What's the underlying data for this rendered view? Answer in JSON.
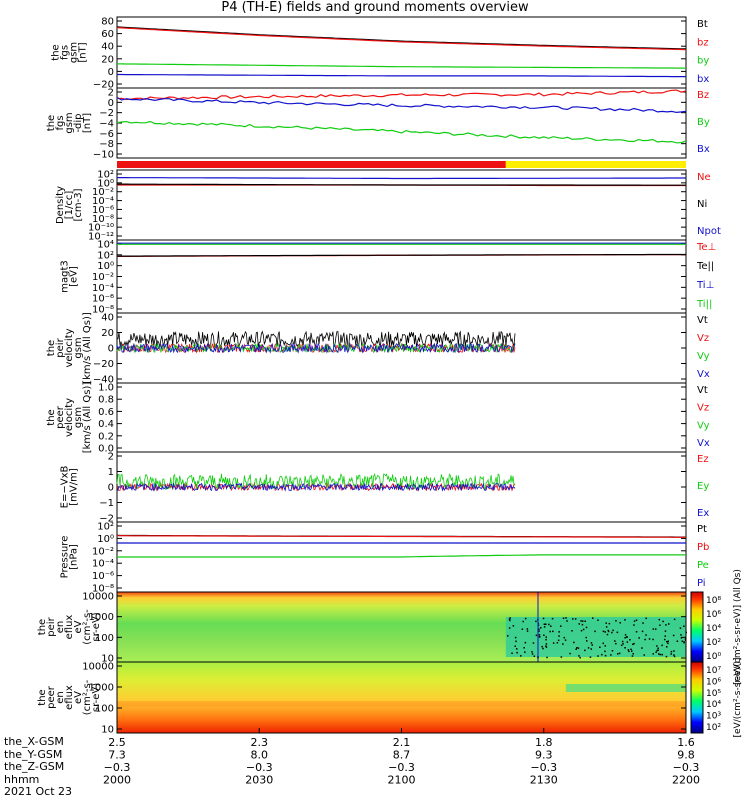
{
  "title": "P4 (TH-E) fields and ground moments overview",
  "panels": [
    {
      "ylabel": [
        "the",
        "fgs",
        "gsm",
        "[nT]"
      ],
      "yticks": [
        "80",
        "60",
        "40",
        "20",
        "0",
        "−20"
      ],
      "legend": [
        "Bt",
        "bz",
        "by",
        "bx"
      ],
      "legend_colors": [
        "#000000",
        "#ee1111",
        "#11cc11",
        "#1111cc"
      ]
    },
    {
      "ylabel": [
        "the",
        "fgs",
        "gsm",
        "-dip",
        "[nT]"
      ],
      "yticks": [
        "2",
        "0",
        "−2",
        "−4",
        "−6",
        "−8",
        "−10"
      ],
      "legend": [
        "Bz",
        "By",
        "Bx"
      ],
      "legend_colors": [
        "#ee1111",
        "#11cc11",
        "#1111cc"
      ]
    },
    {
      "ylabel": [
        "Density",
        "[1/cc]",
        "[cm-3]"
      ],
      "yticks": [
        "10²",
        "10⁰",
        "10⁻²",
        "10⁻⁴",
        "10⁻⁶",
        "10⁻⁸",
        "10⁻¹⁰",
        "10⁻¹²"
      ],
      "legend": [
        "Ne",
        "Ni",
        "Npot"
      ],
      "legend_colors": [
        "#ee1111",
        "#000000",
        "#1111cc"
      ]
    },
    {
      "ylabel": [
        "magt3",
        "[eV]"
      ],
      "yticks": [
        "10⁴",
        "10²",
        "10⁰",
        "10⁻²",
        "10⁻⁴",
        "10⁻⁶",
        "10⁻⁸"
      ],
      "legend": [
        "Te⊥",
        "Te||",
        "Ti⊥",
        "Ti||"
      ],
      "legend_colors": [
        "#ee1111",
        "#000000",
        "#1111cc",
        "#11cc11"
      ]
    },
    {
      "ylabel": [
        "the",
        "peir",
        "velocity",
        "gsm",
        "[km/s (All Qs)]"
      ],
      "yticks": [
        "40",
        "20",
        "0",
        "−20",
        "−40"
      ],
      "legend": [
        "Vt",
        "Vz",
        "Vy",
        "Vx"
      ],
      "legend_colors": [
        "#000000",
        "#ee1111",
        "#11cc11",
        "#1111cc"
      ]
    },
    {
      "ylabel": [
        "the",
        "peer",
        "velocity",
        "gsm",
        "[km/s (All Qs)]"
      ],
      "yticks": [
        "1.0",
        "0.8",
        "0.6",
        "0.4",
        "0.2",
        "0.0"
      ],
      "legend": [
        "Vt",
        "Vz",
        "Vy",
        "Vx"
      ],
      "legend_colors": [
        "#000000",
        "#ee1111",
        "#11cc11",
        "#1111cc"
      ]
    },
    {
      "ylabel": [
        "E=−VxB",
        "[mV/m]"
      ],
      "yticks": [
        "2",
        "1",
        "0",
        "−1",
        "−2"
      ],
      "legend": [
        "Ez",
        "Ey",
        "Ex"
      ],
      "legend_colors": [
        "#ee1111",
        "#11cc11",
        "#1111cc"
      ]
    },
    {
      "ylabel": [
        "Pressure",
        "[nPa]"
      ],
      "yticks": [
        "10²",
        "10⁰",
        "10⁻²",
        "10⁻⁴",
        "10⁻⁶",
        "10⁻⁸"
      ],
      "legend": [
        "Pt",
        "Pb",
        "Pe",
        "Pi"
      ],
      "legend_colors": [
        "#000000",
        "#ee1111",
        "#11cc11",
        "#1111cc"
      ]
    },
    {
      "ylabel": [
        "the",
        "peir",
        "en",
        "eflux",
        "eV",
        "(cm²-s-",
        "sr-eV)"
      ],
      "yticks": [
        "10000",
        "1000",
        "100",
        "10"
      ],
      "legend": [],
      "legend_colors": []
    },
    {
      "ylabel": [
        "the",
        "peer",
        "en",
        "eflux",
        "eV",
        "(cm²-s-",
        "sr-eV)"
      ],
      "yticks": [
        "10000",
        "1000",
        "100",
        "10"
      ],
      "legend": [],
      "legend_colors": []
    }
  ],
  "colorbars": [
    {
      "ticks": [
        "10⁸",
        "10⁶",
        "10⁴",
        "10²",
        "10⁰"
      ],
      "label": "[eV/(cm²-s-sr-eV)] (All Qs)"
    },
    {
      "ticks": [
        "10⁷",
        "10⁶",
        "10⁵",
        "10⁴",
        "10³",
        "10²"
      ],
      "label": "[eV/(cm²-s-sr-eV)]"
    }
  ],
  "xaxis": {
    "row_labels": [
      "the_X-GSM",
      "the_Y-GSM",
      "the_Z-GSM",
      "hhmm",
      "2021 Oct 23"
    ],
    "ticks": [
      {
        "x": "2.5",
        "y": "7.3",
        "z": "−0.3",
        "hhmm": "2000"
      },
      {
        "x": "2.3",
        "y": "8.0",
        "z": "−0.3",
        "hhmm": "2030"
      },
      {
        "x": "2.1",
        "y": "8.7",
        "z": "−0.3",
        "hhmm": "2100"
      },
      {
        "x": "1.8",
        "y": "9.3",
        "z": "−0.3",
        "hhmm": "2130"
      },
      {
        "x": "1.6",
        "y": "9.8",
        "z": "−0.3",
        "hhmm": "2200"
      }
    ]
  },
  "mode_bar": {
    "colors": [
      "#ee1111",
      "#ffee00"
    ],
    "transition_hhmm": "2122"
  },
  "chart_data": [
    {
      "type": "line",
      "title": "P4 (TH-E) fields and ground moments overview",
      "ylabel": "the fgs gsm [nT]",
      "ylim": [
        -20,
        80
      ],
      "x": [
        "2000",
        "2030",
        "2100",
        "2130",
        "2200"
      ],
      "series": [
        {
          "name": "Bt",
          "values": [
            66,
            55,
            46,
            40,
            35
          ]
        },
        {
          "name": "bz",
          "values": [
            65,
            54,
            45,
            39,
            34
          ]
        },
        {
          "name": "by",
          "values": [
            14,
            12,
            10,
            9,
            8
          ]
        },
        {
          "name": "bx",
          "values": [
            -1,
            -2,
            -3,
            -3,
            -4
          ]
        }
      ]
    },
    {
      "type": "line",
      "ylabel": "the fgs gsm-dip [nT]",
      "ylim": [
        -10,
        2
      ],
      "x": [
        "2000",
        "2030",
        "2100",
        "2130",
        "2200"
      ],
      "series": [
        {
          "name": "Bz",
          "values": [
            0.2,
            0.5,
            0.8,
            0.9,
            1.5
          ]
        },
        {
          "name": "By",
          "values": [
            -3.7,
            -4.5,
            -5.5,
            -6.5,
            -7.2
          ]
        },
        {
          "name": "Bx",
          "values": [
            0.2,
            -0.5,
            -1.0,
            -1.3,
            -2.0
          ]
        }
      ]
    },
    {
      "type": "line",
      "ylabel": "Density [1/cc] [cm-3]",
      "ylim": [
        1e-12,
        100
      ],
      "x": [
        "2000",
        "2030",
        "2100",
        "2130",
        "2200"
      ],
      "series": [
        {
          "name": "Ne",
          "values": [
            0.1,
            0.1,
            0.1,
            0.08,
            0.08
          ]
        },
        {
          "name": "Ni",
          "values": [
            0.15,
            0.12,
            0.1,
            0.1,
            0.09
          ]
        },
        {
          "name": "Npot",
          "values": [
            3,
            2.5,
            2,
            2.2,
            2.5
          ]
        }
      ]
    },
    {
      "type": "line",
      "ylabel": "magt3 [eV]",
      "ylim": [
        1e-08,
        10000
      ],
      "x": [
        "2000",
        "2030",
        "2100",
        "2130",
        "2200"
      ],
      "series": [
        {
          "name": "Te⊥",
          "values": [
            20,
            25,
            30,
            35,
            40
          ]
        },
        {
          "name": "Te||",
          "values": [
            22,
            27,
            32,
            37,
            42
          ]
        },
        {
          "name": "Ti⊥",
          "values": [
            3000,
            3000,
            3000,
            3000,
            3000
          ]
        },
        {
          "name": "Ti||",
          "values": [
            2000,
            2000,
            2000,
            2000,
            2000
          ]
        }
      ]
    },
    {
      "type": "line",
      "ylabel": "the peir velocity gsm [km/s (All Qs)]",
      "ylim": [
        -40,
        40
      ],
      "x": [
        "2000",
        "2030",
        "2100",
        "2130",
        "2200"
      ],
      "series": [
        {
          "name": "Vt",
          "values": [
            10,
            10,
            10,
            null,
            null
          ]
        },
        {
          "name": "Vz",
          "values": [
            0,
            0,
            0,
            null,
            null
          ]
        },
        {
          "name": "Vy",
          "values": [
            0,
            0,
            0,
            null,
            null
          ]
        },
        {
          "name": "Vx",
          "values": [
            0,
            0,
            0,
            null,
            null
          ]
        }
      ]
    },
    {
      "type": "line",
      "ylabel": "the peer velocity gsm [km/s (All Qs)]",
      "ylim": [
        0,
        1
      ],
      "x": [
        "2000",
        "2030",
        "2100",
        "2130",
        "2200"
      ],
      "series": []
    },
    {
      "type": "line",
      "ylabel": "E=−VxB [mV/m]",
      "ylim": [
        -2,
        2
      ],
      "x": [
        "2000",
        "2030",
        "2100",
        "2130",
        "2200"
      ],
      "series": [
        {
          "name": "Ez",
          "values": [
            0,
            0,
            0,
            null,
            null
          ]
        },
        {
          "name": "Ey",
          "values": [
            0.3,
            0.3,
            0.3,
            null,
            null
          ]
        },
        {
          "name": "Ex",
          "values": [
            0,
            0,
            0,
            null,
            null
          ]
        }
      ]
    },
    {
      "type": "line",
      "ylabel": "Pressure [nPa]",
      "ylim": [
        1e-08,
        100
      ],
      "x": [
        "2000",
        "2030",
        "2100",
        "2130",
        "2200"
      ],
      "series": [
        {
          "name": "Pt",
          "values": [
            1.2,
            1.0,
            0.9,
            0.8,
            0.7
          ]
        },
        {
          "name": "Pb",
          "values": [
            1.1,
            0.95,
            0.85,
            0.75,
            0.65
          ]
        },
        {
          "name": "Pe",
          "values": [
            0.001,
            0.001,
            0.001,
            0.002,
            0.002
          ]
        },
        {
          "name": "Pi",
          "values": [
            0.1,
            0.1,
            0.1,
            0.1,
            0.1
          ]
        }
      ]
    },
    {
      "type": "heatmap",
      "ylabel": "the peir en eflux eV (cm²-s-sr-eV)",
      "ylim": [
        5,
        20000
      ],
      "x": [
        "2000",
        "2030",
        "2100",
        "2130",
        "2200"
      ]
    },
    {
      "type": "heatmap",
      "ylabel": "the peer en eflux eV (cm²-s-sr-eV)",
      "ylim": [
        5,
        20000
      ],
      "x": [
        "2000",
        "2030",
        "2100",
        "2130",
        "2200"
      ]
    }
  ]
}
